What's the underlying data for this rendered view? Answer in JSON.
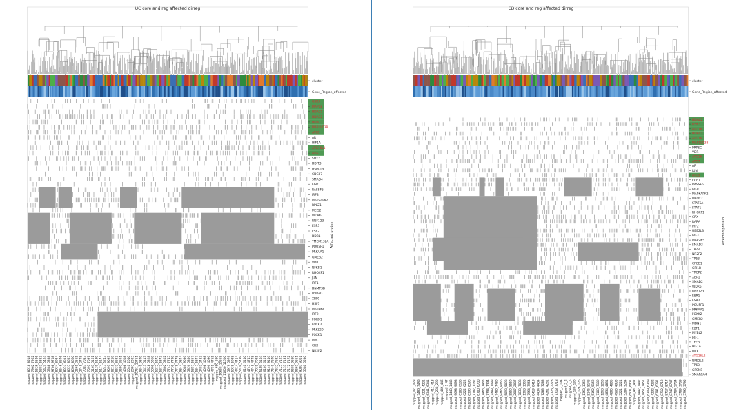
{
  "chart_data": [
    {
      "type": "heatmap",
      "title": "UC core and reg affected dirreg",
      "ylabel": "Affected protein",
      "annotation_rows": [
        "cluster",
        "Gene_Region_affected"
      ],
      "row_labels": [
        {
          "label": "GSK3",
          "highlight": true
        },
        {
          "label": "MAPK8",
          "highlight": true
        },
        {
          "label": "HDAC1",
          "highlight": true
        },
        {
          "label": "HDAC2",
          "highlight": true
        },
        {
          "label": "HDAC3",
          "highlight": true
        },
        {
          "label": "MAP1LC3B",
          "highlight": true
        },
        {
          "label": "ATG5",
          "highlight": true
        },
        {
          "label": "AR",
          "highlight": false
        },
        {
          "label": "HIF1A",
          "highlight": false
        },
        {
          "label": "ATG16L1",
          "highlight": true
        },
        {
          "label": "ATG7",
          "highlight": true
        },
        {
          "label": "SOX2",
          "highlight": false
        },
        {
          "label": "DDIT3",
          "highlight": false
        },
        {
          "label": "HSPA1B",
          "highlight": false
        },
        {
          "label": "CDC37",
          "highlight": false
        },
        {
          "label": "SMAD4",
          "highlight": false
        },
        {
          "label": "EGR1",
          "highlight": false
        },
        {
          "label": "RASSF5",
          "highlight": false
        },
        {
          "label": "IRF8",
          "highlight": false
        },
        {
          "label": "MAPKAPK2",
          "highlight": false
        },
        {
          "label": "RPL21",
          "highlight": false
        },
        {
          "label": "MEIS2",
          "highlight": false
        },
        {
          "label": "WDR6",
          "highlight": false
        },
        {
          "label": "RNF123",
          "highlight": false
        },
        {
          "label": "ESR1",
          "highlight": false
        },
        {
          "label": "ESR2",
          "highlight": false
        },
        {
          "label": "DDB1",
          "highlight": false
        },
        {
          "label": "TMEM132A",
          "highlight": false
        },
        {
          "label": "POU5F1",
          "highlight": false
        },
        {
          "label": "PRKAA1",
          "highlight": false
        },
        {
          "label": "GMEB2",
          "highlight": false
        },
        {
          "label": "VDR",
          "highlight": false
        },
        {
          "label": "NFKB1",
          "highlight": false
        },
        {
          "label": "RHOXF1",
          "highlight": false
        },
        {
          "label": "JUN",
          "highlight": false
        },
        {
          "label": "IRF1",
          "highlight": false
        },
        {
          "label": "DNMT3B",
          "highlight": false
        },
        {
          "label": "UVRAG",
          "highlight": false
        },
        {
          "label": "XBP1",
          "highlight": false
        },
        {
          "label": "HSF1",
          "highlight": false
        },
        {
          "label": "MAP4K4",
          "highlight": false
        },
        {
          "label": "IRF2",
          "highlight": false
        },
        {
          "label": "FOXO1",
          "highlight": false
        },
        {
          "label": "FOXK2",
          "highlight": false
        },
        {
          "label": "PRKL20",
          "highlight": false
        },
        {
          "label": "FOXK1",
          "highlight": false
        },
        {
          "label": "MYC",
          "highlight": false
        },
        {
          "label": "CRX",
          "highlight": false
        },
        {
          "label": "NR2F2",
          "highlight": false
        }
      ],
      "column_labels": [
        "mapped_8518_8518",
        "mapped_7962_7962",
        "mapped_5526_5526",
        "mapped_5383_5383",
        "mapped_5424_5424",
        "mapped_5388_5388",
        "mapped_9708_9708",
        "mapped_8934_8934",
        "mapped_8646_8646",
        "mapped_8651_8651",
        "mapped_8655_8655",
        "mapped_8660_8660",
        "mapped_2565_2565",
        "mapped_2748_2748",
        "mapped_7083_7083",
        "mapped_7097_7097",
        "mapped_5161_5161",
        "mapped_5139_5139",
        "mapped_5174_5174",
        "mapped_6243_6243",
        "mapped_9093_9093",
        "mapped_8218_8218",
        "mapped_8633_8633",
        "mapped_3691_3691",
        "mapped_4608_4608",
        "mapped_2040_2040",
        "mapped_2003_2003",
        "mapped_10761_10761",
        "mapped_9349_9349",
        "mapped_5413_5413",
        "mapped_5328_5328",
        "mapped_5368_5368",
        "mapped_5272_5272",
        "mapped_5373_5373",
        "mapped_5302_5302",
        "mapped_7745_7745",
        "mapped_7738_7738",
        "mapped_7778_7778",
        "mapped_9844_9844",
        "mapped_9086_9086",
        "mapped_5856_5856",
        "mapped_5857_5857",
        "mapped_5847_5847",
        "mapped_2483_2483",
        "mapped_4098_4098",
        "mapped_4096_4096",
        "mapped_4755_4755",
        "mapped_680_680",
        "mapped_10668_10668",
        "mapped_11600_11600",
        "mapped_5979_5979",
        "mapped_5938_5938",
        "mapped_4414_4414",
        "mapped_5439_5439",
        "mapped_6140_6140",
        "mapped_4745_4745",
        "mapped_4748_4748",
        "mapped_7035_7035",
        "mapped_6104_6104",
        "mapped_6101_6101",
        "mapped_9146_9146",
        "mapped_7649_7649",
        "mapped_7632_7632",
        "mapped_7125_7125",
        "mapped_7131_7131",
        "mapped_7172_7172",
        "mapped_9689_9689",
        "mapped_9661_9661",
        "mapped_9001_9001",
        "mapped_5580_5580"
      ]
    },
    {
      "type": "heatmap",
      "title": "CD core and reg affected dirreg",
      "ylabel": "Affected protein",
      "annotation_rows": [
        "cluster",
        "Gene_Region_affected"
      ],
      "row_labels": [
        {
          "label": "HDAC2",
          "highlight": true
        },
        {
          "label": "GSK3",
          "highlight": true
        },
        {
          "label": "ATG16",
          "highlight": true
        },
        {
          "label": "HDAC1",
          "highlight": true
        },
        {
          "label": "ATG16",
          "highlight": true
        },
        {
          "label": "MAP1LC3B",
          "highlight": true
        },
        {
          "label": "PRPSC",
          "highlight": false
        },
        {
          "label": "VDR",
          "highlight": false
        },
        {
          "label": "ATG16",
          "highlight": true
        },
        {
          "label": "ATG7",
          "highlight": true
        },
        {
          "label": "AR",
          "highlight": false
        },
        {
          "label": "JUN",
          "highlight": false
        },
        {
          "label": "ATG5",
          "highlight": true
        },
        {
          "label": "EGR1",
          "highlight": false
        },
        {
          "label": "RASSF5",
          "highlight": false
        },
        {
          "label": "IRF8",
          "highlight": false
        },
        {
          "label": "MAPKAPK2",
          "highlight": false
        },
        {
          "label": "MEOX2",
          "highlight": false
        },
        {
          "label": "STAT5A",
          "highlight": false
        },
        {
          "label": "STAT1",
          "highlight": false
        },
        {
          "label": "RHOXF1",
          "highlight": false
        },
        {
          "label": "CRX",
          "highlight": false
        },
        {
          "label": "RARA",
          "highlight": false
        },
        {
          "label": "IRF2",
          "highlight": false
        },
        {
          "label": "UBE2L3",
          "highlight": false
        },
        {
          "label": "IRF3",
          "highlight": false
        },
        {
          "label": "MAP2K5",
          "highlight": false
        },
        {
          "label": "SMAD3",
          "highlight": false
        },
        {
          "label": "TP73",
          "highlight": false
        },
        {
          "label": "NR2F2",
          "highlight": false
        },
        {
          "label": "TP53",
          "highlight": false
        },
        {
          "label": "CREB1",
          "highlight": false
        },
        {
          "label": "GFI1B",
          "highlight": false
        },
        {
          "label": "TRCP2",
          "highlight": false
        },
        {
          "label": "XBP1",
          "highlight": false
        },
        {
          "label": "SMAD2",
          "highlight": false
        },
        {
          "label": "WDR6",
          "highlight": false
        },
        {
          "label": "RNF123",
          "highlight": false
        },
        {
          "label": "ESR1",
          "highlight": false
        },
        {
          "label": "ESR2",
          "highlight": false
        },
        {
          "label": "POU5F1",
          "highlight": false
        },
        {
          "label": "PRKAA1",
          "highlight": false
        },
        {
          "label": "FOXK2",
          "highlight": false
        },
        {
          "label": "GMEB2",
          "highlight": false
        },
        {
          "label": "MDN1",
          "highlight": false
        },
        {
          "label": "E2F1",
          "highlight": false
        },
        {
          "label": "MYBL2",
          "highlight": false
        },
        {
          "label": "IRF1",
          "highlight": false
        },
        {
          "label": "TFEB",
          "highlight": false
        },
        {
          "label": "HIF1A",
          "highlight": false
        },
        {
          "label": "MLX",
          "highlight": false
        },
        {
          "label": "ATG16L2",
          "highlight": false,
          "red": true
        },
        {
          "label": "NFE2L2",
          "highlight": false
        },
        {
          "label": "TP63",
          "highlight": false
        },
        {
          "label": "GPSM1",
          "highlight": false
        },
        {
          "label": "SMARCA4",
          "highlight": false
        }
      ],
      "column_labels": [
        "mapped_471_473",
        "mapped_2489_2489",
        "mapped_4221_4221",
        "mapped_6341_6341",
        "mapped_411_413",
        "mapped_288_290",
        "mapped_446_446",
        "mapped_1_47",
        "mapped_1443_1443",
        "mapped_9698_9698",
        "mapped_6188_6188",
        "mapped_6222_6222",
        "mapped_8596_8596",
        "mapped_7182_7182",
        "mapped_6700_6700",
        "mapped_7465_7465",
        "mapped_7394_7394",
        "mapped_7488_7488",
        "mapped_7480_7480",
        "mapped_8466_8466",
        "mapped_5898_5898",
        "mapped_5550_5550",
        "mapped_2087_2087",
        "mapped_7838_7838",
        "mapped_1368_1368",
        "mapped_7964_7964",
        "mapped_8419_8419",
        "mapped_4434_4434",
        "mapped_7283_7283",
        "mapped_4261_4261",
        "mapped_2773_2773",
        "mapped_7718_7718",
        "mapped_2_194",
        "mapped_2_2",
        "mapped_3_5",
        "mapped_130_130",
        "mapped_126_126",
        "mapped_1368_1368",
        "mapped_5146_5146",
        "mapped_5162_5162",
        "mapped_7189_7189",
        "mapped_1268_1268",
        "mapped_4834_4834",
        "mapped_4805_4805",
        "mapped_4905_4905",
        "mapped_5221_5221",
        "mapped_5284_5284",
        "mapped_8931_8931",
        "mapped_947_947",
        "mapped_1442_1442",
        "mapped_1851_1851",
        "mapped_6349_6349",
        "mapped_4232_4232",
        "mapped_6291_6291",
        "mapped_8712_8712",
        "mapped_8717_8717",
        "mapped_8747_8747",
        "mapped_5784_5784",
        "mapped_3789_3789",
        "mapped_5795_5795"
      ]
    }
  ]
}
